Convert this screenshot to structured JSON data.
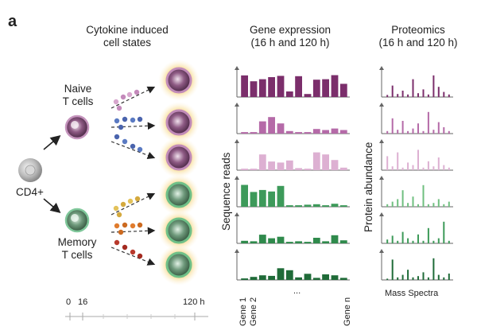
{
  "panel_letter": "a",
  "headers": {
    "cytokine_line1": "Cytokine induced",
    "cytokine_line2": "cell states",
    "gene_line1": "Gene expression",
    "gene_line2": "(16 h and 120 h)",
    "prot_line1": "Proteomics",
    "prot_line2": "(16 h and 120 h)"
  },
  "labels": {
    "naive_line1": "Naive",
    "naive_line2": "T cells",
    "memory_line1": "Memory",
    "memory_line2": "T cells",
    "cd4": "CD4+",
    "sequence_reads": "Sequence reads",
    "protein_abundance": "Protein abundance",
    "mass_spectra": "Mass Spectra",
    "ellipsis": "...",
    "timeline_0": "0",
    "timeline_16": "16",
    "timeline_120": "120 h"
  },
  "genes": [
    "Gene 1",
    "Gene 2",
    "Gene n"
  ],
  "colors": {
    "dark_purple": "#7b2e6b",
    "medium_purple": "#b56aa8",
    "light_purple": "#ddb0d2",
    "light_green": "#6fbf7f",
    "medium_green": "#3c9a58",
    "dark_green": "#1f6b38",
    "halo": "#f6dc9a"
  },
  "gene_expression_rows": [
    {
      "color": "#7b2e6b",
      "values": [
        0.85,
        0.62,
        0.7,
        0.78,
        0.83,
        0.22,
        0.82,
        0.12,
        0.68,
        0.7,
        0.86,
        0.52
      ]
    },
    {
      "color": "#b56aa8",
      "values": [
        0.06,
        0.06,
        0.48,
        0.65,
        0.4,
        0.1,
        0.06,
        0.06,
        0.18,
        0.14,
        0.2,
        0.14
      ]
    },
    {
      "color": "#ddb0d2",
      "values": [
        0.06,
        0.06,
        0.62,
        0.34,
        0.3,
        0.38,
        0.08,
        0.06,
        0.7,
        0.62,
        0.4,
        0.1
      ]
    },
    {
      "color": "#3d9a5a",
      "values": [
        0.86,
        0.58,
        0.66,
        0.6,
        0.82,
        0.06,
        0.06,
        0.08,
        0.1,
        0.06,
        0.12,
        0.06
      ]
    },
    {
      "color": "#2f8a4c",
      "values": [
        0.1,
        0.08,
        0.34,
        0.2,
        0.26,
        0.06,
        0.08,
        0.06,
        0.22,
        0.08,
        0.32,
        0.12
      ]
    },
    {
      "color": "#1f6b38",
      "values": [
        0.06,
        0.12,
        0.18,
        0.16,
        0.46,
        0.38,
        0.1,
        0.24,
        0.08,
        0.22,
        0.18,
        0.08
      ]
    }
  ],
  "proteomics_rows": [
    {
      "color": "#7b2e6b",
      "values": [
        0.08,
        0.45,
        0.12,
        0.25,
        0.1,
        0.7,
        0.15,
        0.3,
        0.1,
        0.85,
        0.4,
        0.2,
        0.1
      ]
    },
    {
      "color": "#b56aa8",
      "values": [
        0.1,
        0.6,
        0.15,
        0.5,
        0.1,
        0.2,
        0.4,
        0.1,
        0.85,
        0.15,
        0.45,
        0.25,
        0.1
      ]
    },
    {
      "color": "#ddb0d2",
      "values": [
        0.55,
        0.15,
        0.7,
        0.1,
        0.3,
        0.2,
        0.8,
        0.1,
        0.35,
        0.15,
        0.5,
        0.2,
        0.1
      ]
    },
    {
      "color": "#6fbf7f",
      "values": [
        0.1,
        0.2,
        0.3,
        0.65,
        0.15,
        0.4,
        0.1,
        0.85,
        0.1,
        0.15,
        0.3,
        0.1,
        0.2
      ]
    },
    {
      "color": "#3c9a58",
      "values": [
        0.15,
        0.3,
        0.1,
        0.45,
        0.2,
        0.1,
        0.35,
        0.1,
        0.6,
        0.1,
        0.2,
        0.85,
        0.1
      ]
    },
    {
      "color": "#1f6b38",
      "values": [
        0.05,
        0.8,
        0.1,
        0.2,
        0.4,
        0.1,
        0.15,
        0.3,
        0.1,
        0.85,
        0.2,
        0.1,
        0.25
      ]
    }
  ]
}
